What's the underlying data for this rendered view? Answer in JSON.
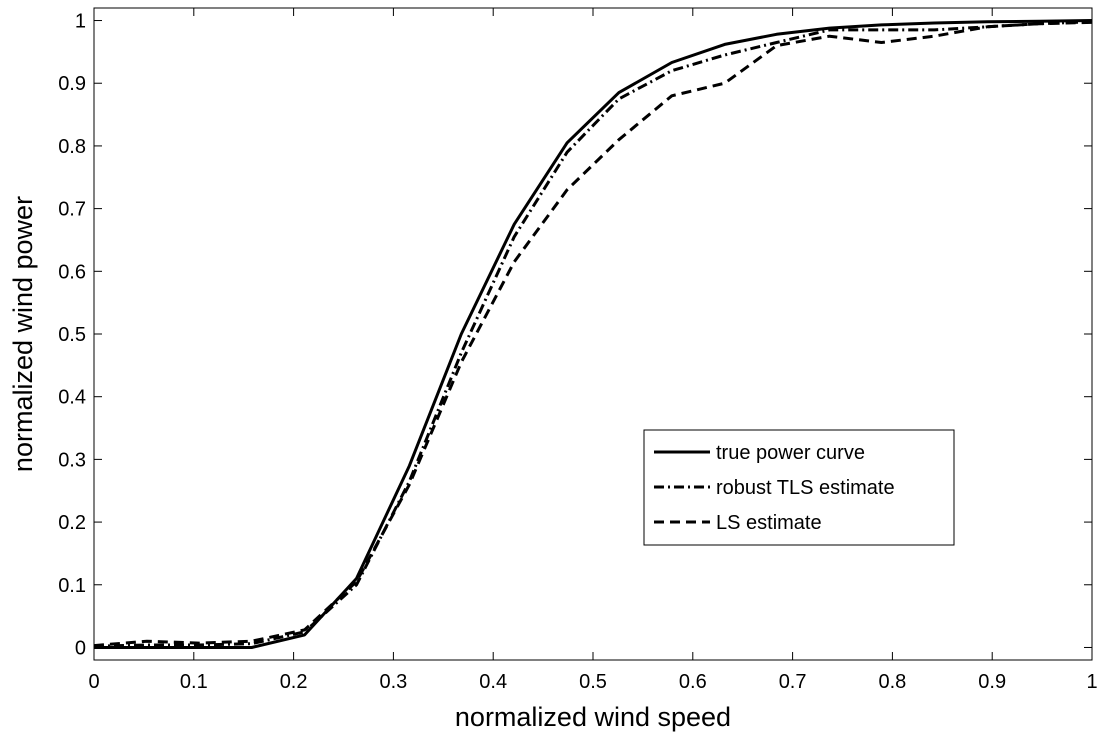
{
  "chart_data": {
    "type": "line",
    "title": "",
    "xlabel": "normalized wind speed",
    "ylabel": "normalized wind power",
    "xlim": [
      0,
      1
    ],
    "ylim": [
      -0.02,
      1.02
    ],
    "x_ticks": [
      "0",
      "0.1",
      "0.2",
      "0.3",
      "0.4",
      "0.5",
      "0.6",
      "0.7",
      "0.8",
      "0.9",
      "1"
    ],
    "y_ticks": [
      "0",
      "0.1",
      "0.2",
      "0.3",
      "0.4",
      "0.5",
      "0.6",
      "0.7",
      "0.8",
      "0.9",
      "1"
    ],
    "grid": false,
    "legend_position": "center-right",
    "series": [
      {
        "name": "true power curve",
        "style": "solid",
        "x": [
          0,
          0.053,
          0.105,
          0.158,
          0.211,
          0.263,
          0.316,
          0.368,
          0.421,
          0.474,
          0.526,
          0.579,
          0.632,
          0.684,
          0.737,
          0.789,
          0.842,
          0.895,
          0.947,
          1
        ],
        "y": [
          0,
          0,
          0,
          0,
          0.02,
          0.11,
          0.29,
          0.5,
          0.675,
          0.805,
          0.885,
          0.933,
          0.962,
          0.978,
          0.988,
          0.993,
          0.996,
          0.998,
          0.999,
          1
        ]
      },
      {
        "name": "robust TLS estimate",
        "style": "dashdot",
        "x": [
          0,
          0.053,
          0.105,
          0.158,
          0.211,
          0.263,
          0.316,
          0.368,
          0.421,
          0.474,
          0.526,
          0.579,
          0.632,
          0.684,
          0.737,
          0.789,
          0.842,
          0.895,
          0.947,
          1
        ],
        "y": [
          0.002,
          0.004,
          0.004,
          0.006,
          0.025,
          0.1,
          0.265,
          0.47,
          0.655,
          0.79,
          0.875,
          0.92,
          0.945,
          0.965,
          0.985,
          0.985,
          0.985,
          0.99,
          0.995,
          0.998
        ]
      },
      {
        "name": "LS estimate",
        "style": "dashed",
        "x": [
          0,
          0.053,
          0.105,
          0.158,
          0.211,
          0.263,
          0.316,
          0.368,
          0.421,
          0.474,
          0.526,
          0.579,
          0.632,
          0.684,
          0.737,
          0.789,
          0.842,
          0.895,
          0.947,
          1
        ],
        "y": [
          0.003,
          0.01,
          0.007,
          0.01,
          0.028,
          0.105,
          0.26,
          0.455,
          0.615,
          0.73,
          0.81,
          0.88,
          0.9,
          0.96,
          0.975,
          0.965,
          0.975,
          0.99,
          0.995,
          0.997
        ]
      }
    ]
  }
}
